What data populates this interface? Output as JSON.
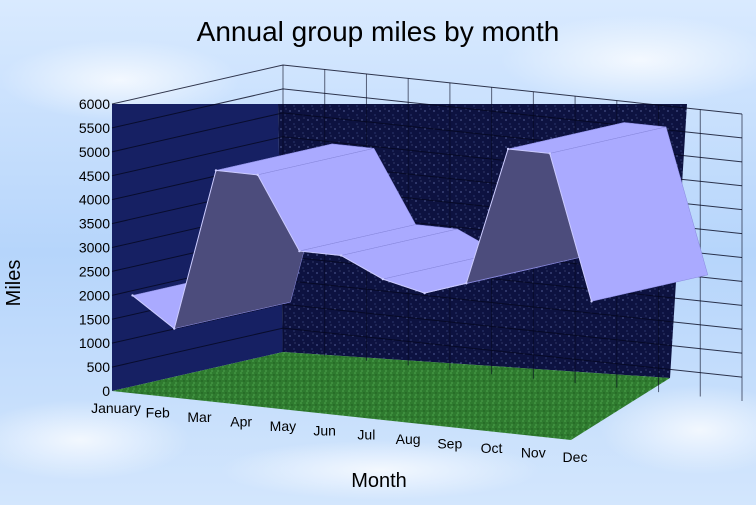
{
  "chart_data": {
    "type": "area",
    "title": "Annual group miles by month",
    "xlabel": "Month",
    "ylabel": "Miles",
    "ylim": [
      0,
      6000
    ],
    "yticks": [
      0,
      500,
      1000,
      1500,
      2000,
      2500,
      3000,
      3500,
      4000,
      4500,
      5000,
      5500,
      6000
    ],
    "categories": [
      "January",
      "Feb",
      "Mar",
      "Apr",
      "May",
      "Jun",
      "Jul",
      "Aug",
      "Sep",
      "Oct",
      "Nov",
      "Dec"
    ],
    "series": [
      {
        "values": [
          1900,
          1300,
          4700,
          4700,
          3200,
          3200,
          2800,
          2600,
          2900,
          5800,
          5800,
          2800
        ]
      }
    ],
    "grid": true,
    "legend": "none",
    "colors": {
      "ribbon_top": "#aaaaff",
      "ribbon_face": "#4c4c7c",
      "back_wall": "#0d1240",
      "side_wall": "#162063",
      "floor": "#2f7a2f"
    }
  }
}
